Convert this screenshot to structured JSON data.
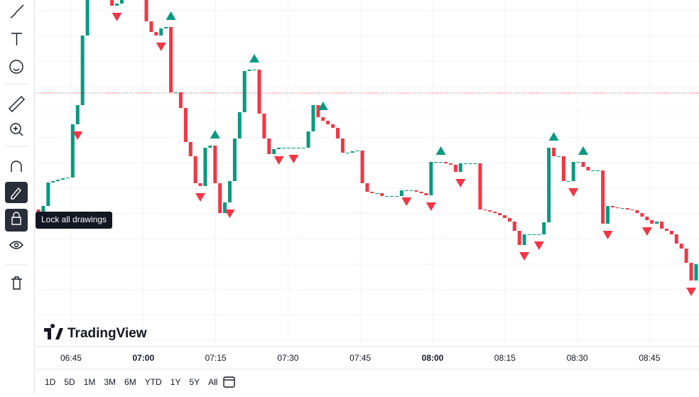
{
  "toolbar": {
    "tooltip": "Lock all drawings"
  },
  "logo": "TradingView",
  "time_axis": [
    "06:45",
    "07:00",
    "07:15",
    "07:30",
    "07:45",
    "08:00",
    "08:15",
    "08:30",
    "08:45"
  ],
  "ranges": [
    "1D",
    "5D",
    "1M",
    "3M",
    "6M",
    "YTD",
    "1Y",
    "5Y",
    "All"
  ],
  "chart": {
    "open": 205,
    "closes": [
      200,
      210,
      243,
      245,
      247,
      249,
      250,
      325,
      352,
      450,
      510,
      520,
      515,
      510,
      505,
      492,
      495,
      505,
      510,
      510,
      505,
      500,
      470,
      455,
      450,
      460,
      462,
      370,
      370,
      348,
      300,
      280,
      242,
      238,
      292,
      295,
      242,
      200,
      215,
      245,
      305,
      342,
      400,
      402,
      402,
      340,
      305,
      283,
      290,
      292,
      292,
      292,
      292,
      292,
      292,
      315,
      352,
      335,
      330,
      325,
      320,
      305,
      285,
      285,
      287,
      288,
      242,
      230,
      228,
      228,
      224,
      224,
      224,
      224,
      232,
      232,
      232,
      230,
      228,
      225,
      272,
      272,
      272,
      270,
      268,
      258,
      270,
      270,
      270,
      270,
      205,
      204,
      202,
      200,
      197,
      193,
      188,
      175,
      155,
      170,
      170,
      170,
      170,
      187,
      292,
      280,
      280,
      245,
      245,
      272,
      272,
      265,
      260,
      260,
      260,
      185,
      210,
      208,
      207,
      207,
      205,
      204,
      200,
      195,
      190,
      185,
      188,
      178,
      175,
      170,
      157,
      150,
      130,
      105,
      128
    ],
    "up_color": "#089981",
    "down_color": "#f23645",
    "buy_signals": [
      27,
      36,
      44,
      58,
      82,
      105,
      111
    ],
    "sell_signals": [
      8,
      16,
      25,
      33,
      39,
      49,
      52,
      75,
      80,
      86,
      99,
      102,
      109,
      116,
      124,
      133
    ]
  }
}
